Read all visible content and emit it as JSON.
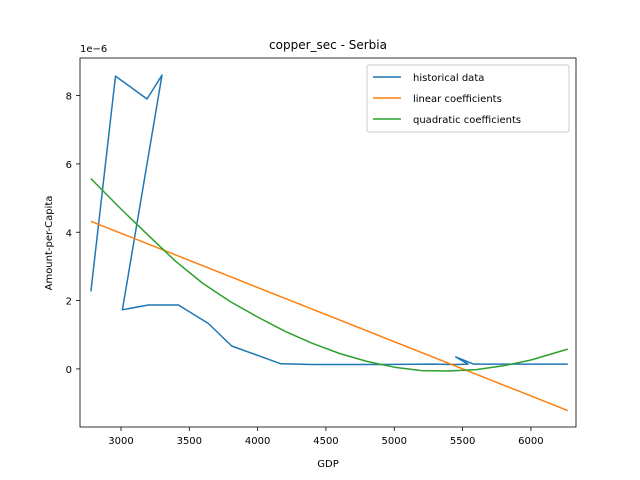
{
  "chart_data": {
    "type": "line",
    "title": "copper_sec - Serbia",
    "xlabel": "GDP",
    "ylabel": "Amount-per-Capita",
    "y_multiplier_label": "1e−6",
    "xlim": [
      2700,
      6330
    ],
    "ylim": [
      -1.7,
      9.1
    ],
    "x_ticks": [
      3000,
      3500,
      4000,
      4500,
      5000,
      5500,
      6000
    ],
    "x_tick_labels": [
      "3000",
      "3500",
      "4000",
      "4500",
      "5000",
      "5500",
      "6000"
    ],
    "y_ticks": [
      0,
      2,
      4,
      6,
      8
    ],
    "y_tick_labels": [
      "0",
      "2",
      "4",
      "6",
      "8"
    ],
    "legend_position": "upper-right",
    "grid": false,
    "series": [
      {
        "name": "historical data",
        "color": "#1f77b4",
        "x": [
          2780,
          2960,
          3190,
          3300,
          3010,
          3200,
          3420,
          3640,
          3810,
          4170,
          4400,
          4900,
          5270,
          5450,
          5540,
          5450,
          5580,
          6270
        ],
        "y": [
          2.27,
          8.57,
          7.9,
          8.6,
          1.73,
          1.87,
          1.87,
          1.33,
          0.67,
          0.15,
          0.13,
          0.13,
          0.14,
          0.13,
          0.14,
          0.35,
          0.14,
          0.14
        ]
      },
      {
        "name": "linear coefficients",
        "color": "#ff7f0e",
        "x": [
          2780,
          6270
        ],
        "y": [
          4.32,
          -1.22
        ]
      },
      {
        "name": "quadratic coefficients",
        "color": "#2ca02c",
        "x": [
          2780,
          3000,
          3200,
          3400,
          3600,
          3800,
          4000,
          4200,
          4400,
          4600,
          4800,
          5000,
          5200,
          5400,
          5600,
          5800,
          6000,
          6270
        ],
        "y": [
          5.57,
          4.68,
          3.91,
          3.15,
          2.5,
          1.97,
          1.52,
          1.1,
          0.75,
          0.45,
          0.22,
          0.05,
          -0.05,
          -0.06,
          -0.02,
          0.09,
          0.26,
          0.58
        ]
      }
    ]
  }
}
